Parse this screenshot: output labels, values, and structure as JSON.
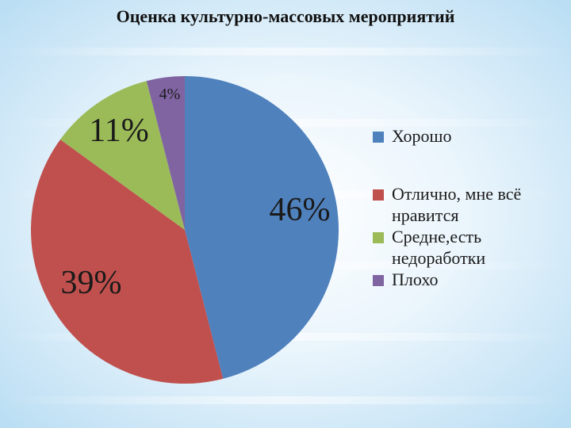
{
  "chart_data": {
    "type": "pie",
    "title": "Оценка культурно-массовых мероприятий",
    "slices": [
      {
        "label": "Хорошо",
        "value": 46,
        "data_label": "46%",
        "color": "#4f81bd"
      },
      {
        "label": "Отлично, мне всё нравится",
        "value": 39,
        "data_label": "39%",
        "color": "#c0504d"
      },
      {
        "label": "Средне,есть недоработки",
        "value": 11,
        "data_label": "11%",
        "color": "#9bbb59"
      },
      {
        "label": "Плохо",
        "value": 4,
        "data_label": "4%",
        "color": "#8064a2"
      }
    ],
    "legend": {
      "position": "right",
      "items": [
        "Хорошо",
        "Отлично, мне всё нравится",
        "Средне,есть недоработки",
        "Плохо"
      ]
    }
  }
}
